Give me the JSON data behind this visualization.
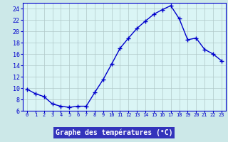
{
  "hours": [
    0,
    1,
    2,
    3,
    4,
    5,
    6,
    7,
    8,
    9,
    10,
    11,
    12,
    13,
    14,
    15,
    16,
    17,
    18,
    19,
    20,
    21,
    22,
    23
  ],
  "temps": [
    9.8,
    9.0,
    8.5,
    7.2,
    6.8,
    6.6,
    6.8,
    6.8,
    9.2,
    11.5,
    14.2,
    17.0,
    18.8,
    20.5,
    21.8,
    23.0,
    23.8,
    24.5,
    22.2,
    18.5,
    18.8,
    16.8,
    16.0,
    14.8
  ],
  "xlabel": "Graphe des températures (°C)",
  "xlim_min": -0.5,
  "xlim_max": 23.5,
  "ylim_min": 6,
  "ylim_max": 25,
  "yticks": [
    6,
    8,
    10,
    12,
    14,
    16,
    18,
    20,
    22,
    24
  ],
  "xticks": [
    0,
    1,
    2,
    3,
    4,
    5,
    6,
    7,
    8,
    9,
    10,
    11,
    12,
    13,
    14,
    15,
    16,
    17,
    18,
    19,
    20,
    21,
    22,
    23
  ],
  "line_color": "#0000cc",
  "marker": "+",
  "bg_color": "#cce8e8",
  "plot_bg_color": "#daf5f5",
  "grid_color": "#b0c8c8",
  "xlabel_color": "#0000cc",
  "xlabel_bg": "#3333bb",
  "xlabel_fg": "#ffffff",
  "marker_size": 4,
  "line_width": 1.0
}
